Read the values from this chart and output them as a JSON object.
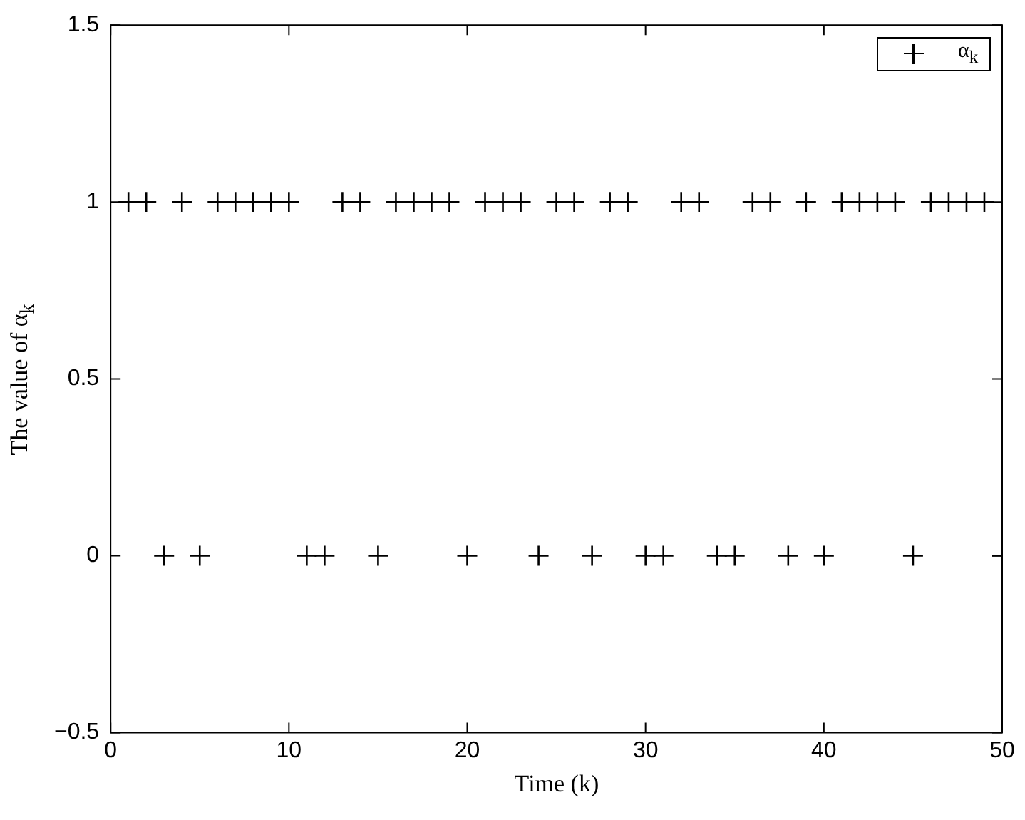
{
  "chart_data": {
    "type": "scatter",
    "xlabel": "Time (k)",
    "ylabel": "The value of α$_{k}$",
    "x": [
      1,
      2,
      3,
      4,
      5,
      6,
      7,
      8,
      9,
      10,
      11,
      12,
      13,
      14,
      15,
      16,
      17,
      18,
      19,
      20,
      21,
      22,
      23,
      24,
      25,
      26,
      27,
      28,
      29,
      30,
      31,
      32,
      33,
      34,
      35,
      36,
      37,
      38,
      39,
      40,
      41,
      42,
      43,
      44,
      45,
      46,
      47,
      48,
      49,
      50
    ],
    "series": [
      {
        "name": "α$_{k}$",
        "color": "#000000",
        "values": [
          1,
          1,
          0,
          1,
          0,
          1,
          1,
          1,
          1,
          1,
          0,
          0,
          1,
          1,
          0,
          1,
          1,
          1,
          1,
          0,
          1,
          1,
          1,
          0,
          1,
          1,
          0,
          1,
          1,
          0,
          0,
          1,
          1,
          0,
          0,
          1,
          1,
          0,
          1,
          0,
          1,
          1,
          1,
          1,
          0,
          1,
          1,
          1,
          1,
          0
        ]
      }
    ],
    "xlim": [
      0,
      50
    ],
    "xticks": [
      0,
      10,
      20,
      30,
      40,
      50
    ],
    "ylim": [
      -0.5,
      1.5
    ],
    "yticks": [
      -0.5,
      0,
      0.5,
      1,
      1.5
    ],
    "marker": "cross",
    "legend": "top right",
    "grid": false
  }
}
